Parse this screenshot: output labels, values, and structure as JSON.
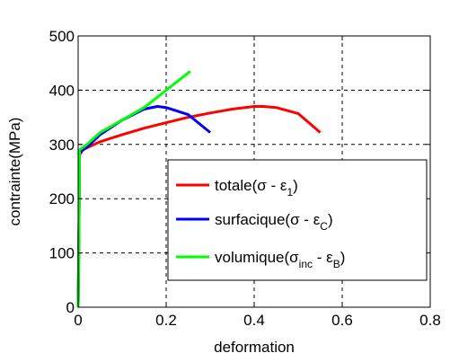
{
  "chart_data": {
    "type": "line",
    "xlabel": "deformation",
    "ylabel": "contrainte(MPa)",
    "xlim": [
      0,
      0.8
    ],
    "ylim": [
      0,
      500
    ],
    "x_ticks": [
      "0",
      "0.2",
      "0.4",
      "0.6",
      "0.8"
    ],
    "y_ticks": [
      "0",
      "100",
      "200",
      "300",
      "400",
      "500"
    ],
    "grid": true,
    "legend_position": "inside-lower-right",
    "series": [
      {
        "name": "totale(σ - ε1)",
        "legend_main": "totale(σ - ε",
        "legend_sub": "1",
        "legend_tail": ")",
        "color": "#ff0000",
        "points": [
          [
            0,
            0
          ],
          [
            0.0015,
            100
          ],
          [
            0.0025,
            200
          ],
          [
            0.003,
            280
          ],
          [
            0.01,
            290
          ],
          [
            0.05,
            305
          ],
          [
            0.1,
            318
          ],
          [
            0.15,
            330
          ],
          [
            0.2,
            340
          ],
          [
            0.25,
            350
          ],
          [
            0.3,
            358
          ],
          [
            0.35,
            365
          ],
          [
            0.4,
            370
          ],
          [
            0.42,
            370
          ],
          [
            0.45,
            368
          ],
          [
            0.5,
            357
          ],
          [
            0.55,
            322
          ]
        ]
      },
      {
        "name": "surfacique(σ - εC)",
        "legend_main": "surfacique(σ - ε",
        "legend_sub": "C",
        "legend_tail": ")",
        "color": "#0000ff",
        "points": [
          [
            0,
            0
          ],
          [
            0.0015,
            100
          ],
          [
            0.0025,
            200
          ],
          [
            0.003,
            285
          ],
          [
            0.02,
            295
          ],
          [
            0.05,
            318
          ],
          [
            0.1,
            345
          ],
          [
            0.15,
            365
          ],
          [
            0.18,
            370
          ],
          [
            0.2,
            368
          ],
          [
            0.25,
            355
          ],
          [
            0.3,
            322
          ]
        ]
      },
      {
        "name": "volumique(σinc - εB)",
        "legend_main": "volumique(σ",
        "legend_sub": "inc",
        "legend_mid": " - ε",
        "legend_sub2": "B",
        "legend_tail": ")",
        "color": "#00ff00",
        "points": [
          [
            0,
            0
          ],
          [
            0.0015,
            100
          ],
          [
            0.0025,
            200
          ],
          [
            0.003,
            290
          ],
          [
            0.02,
            300
          ],
          [
            0.05,
            322
          ],
          [
            0.1,
            345
          ],
          [
            0.15,
            368
          ],
          [
            0.2,
            400
          ],
          [
            0.255,
            435
          ]
        ]
      }
    ]
  }
}
